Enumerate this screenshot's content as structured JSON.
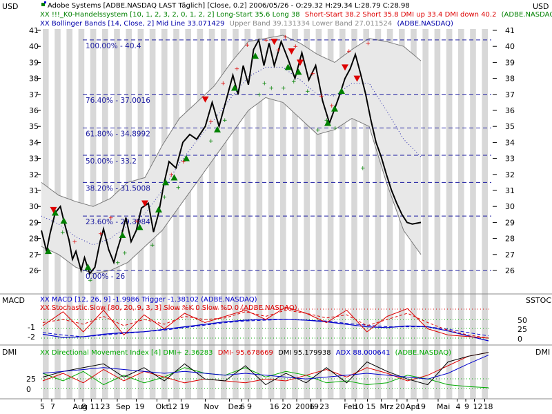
{
  "header": {
    "left_unit": "USD",
    "right_unit": "USD",
    "title_line": "Adobe Systems [ADBE.NASDAQ LAST Täglich] [Close, 0.2] 2006/05/26 - O:29.32 H:29.34 L:28.79 C:28.98",
    "system_line_green": "XX !!!_K0-Handelssystem [10, 1, 2, 3, 2, 0, 1, 2, 2] Long-Start 35.6 Long 38",
    "system_line_red": "Short-Start 38.2 Short 35.8 DMI up 33.4 DMI down 40.2",
    "system_line_tail": "(ADBE.NASDAQ)",
    "bb_line_blue": "XX Bollinger Bands [14, Close, 2] Mid Line 33.071429",
    "bb_line_grey": "Upper Band 39.131334 Lower Band 27.011524",
    "bb_line_tail": "(ADBE.NASDAQ)"
  },
  "panels": {
    "macd_label": "MACD",
    "sstoc_label": "SSTOC",
    "dmi_label_left": "DMI",
    "dmi_label_right": "DMI",
    "macd_legend": "XX MACD [12, 26, 9] -1.9986 Trigger -1.38102 (ADBE.NASDAQ)",
    "stoch_legend": "XX Stochastic Slow [80, 20, 9, 3, 3] Slow %K 0 Slow %D 0 (ADBE.NASDAQ)",
    "dmi_legend_green": "XX Directional Movement Index [4] DMI+ 2.36283",
    "dmi_legend_red": "DMI- 95.678669",
    "dmi_legend_black": "DMI 95.179938",
    "dmi_legend_blue": "ADX 88.000641",
    "dmi_legend_tail": "(ADBE.NASDAQ)"
  },
  "colors": {
    "price": "#000000",
    "band_fill": "#e8e8e8",
    "band_line": "#7a7a7a",
    "midline": "#2222aa",
    "fib": "#1a1aa0",
    "up": "#008000",
    "down": "#dd0000",
    "macd": "#0000cc",
    "stripe": "#d8d8d8"
  },
  "chart_data": [
    {
      "type": "line",
      "name": "price",
      "yticks": [
        26,
        27,
        28,
        29,
        30,
        31,
        32,
        33,
        34,
        35,
        36,
        37,
        38,
        39,
        40,
        41
      ],
      "ylim": [
        25.3,
        41.6
      ],
      "x": [
        0,
        3,
        5,
        8,
        11,
        13,
        16,
        18,
        20,
        23,
        25,
        28,
        31,
        34,
        36,
        39,
        42,
        44,
        46,
        49,
        52,
        55,
        58,
        62,
        65,
        68,
        71,
        74,
        78,
        82,
        86,
        90,
        95,
        99,
        103,
        107,
        111,
        114,
        117,
        120,
        123,
        126,
        129,
        132,
        135,
        139,
        143,
        147,
        151,
        155,
        159,
        163,
        167,
        170,
        173,
        176,
        179,
        182,
        185,
        188,
        191,
        194,
        197,
        200,
        203,
        206,
        209,
        212,
        215,
        220
      ],
      "values": [
        28.5,
        27.2,
        28.3,
        29.6,
        30.0,
        29.1,
        27.9,
        26.7,
        27.2,
        26.0,
        26.8,
        25.8,
        26.2,
        27.8,
        28.6,
        27.3,
        26.5,
        27.3,
        28.0,
        29.3,
        27.8,
        28.5,
        29.9,
        30.2,
        28.4,
        29.6,
        31.4,
        32.8,
        32.4,
        34.0,
        34.5,
        34.2,
        35.0,
        36.5,
        35.0,
        36.6,
        38.2,
        37.0,
        38.8,
        37.6,
        39.8,
        40.4,
        38.8,
        40.2,
        38.8,
        40.3,
        39.2,
        38.0,
        39.6,
        37.9,
        38.8,
        36.6,
        35.2,
        36.1,
        37.0,
        38.0,
        38.6,
        39.5,
        38.3,
        37.0,
        35.4,
        34.0,
        33.1,
        32.0,
        31.0,
        30.2,
        29.5,
        29.0,
        28.9,
        29.0
      ]
    },
    {
      "type": "area",
      "name": "bollinger",
      "x": [
        0,
        10,
        20,
        30,
        40,
        50,
        60,
        70,
        80,
        90,
        100,
        110,
        120,
        130,
        140,
        150,
        160,
        170,
        180,
        190,
        200,
        210,
        220
      ],
      "upper": [
        31.5,
        30.7,
        30.3,
        30.0,
        30.5,
        31.5,
        31.8,
        33.8,
        35.5,
        36.5,
        37.5,
        39.0,
        40.3,
        40.5,
        40.7,
        40.2,
        39.5,
        39.0,
        39.8,
        40.5,
        40.3,
        40.0,
        39.1
      ],
      "lower": [
        27.5,
        27.0,
        26.2,
        25.8,
        26.0,
        26.5,
        27.5,
        28.5,
        30.0,
        31.5,
        33.0,
        34.5,
        36.0,
        36.8,
        36.5,
        35.5,
        34.5,
        34.8,
        35.5,
        35.0,
        31.5,
        28.5,
        27.0
      ],
      "mid": [
        29.4,
        28.9,
        28.1,
        27.6,
        28.0,
        28.8,
        29.5,
        31.0,
        32.7,
        34.1,
        35.4,
        36.8,
        38.1,
        38.7,
        38.7,
        37.9,
        37.0,
        36.9,
        37.7,
        37.7,
        36.0,
        34.2,
        33.1
      ]
    },
    {
      "type": "table",
      "name": "fibonacci",
      "levels": [
        {
          "value": 40.4,
          "label": "100.00% - 40.4"
        },
        {
          "value": 37.0016,
          "label": "76.40% - 37.0016"
        },
        {
          "value": 34.8992,
          "label": "61.80% - 34.8992"
        },
        {
          "value": 33.2,
          "label": "50.00% - 33.2"
        },
        {
          "value": 31.5008,
          "label": "38.20% - 31.5008"
        },
        {
          "value": 29.3984,
          "label": "23.60% - 29.3984"
        },
        {
          "value": 26,
          "label": "0.00% - 26"
        }
      ]
    },
    {
      "type": "scatter",
      "name": "signals",
      "up": [
        [
          4,
          27.2
        ],
        [
          8,
          29.6
        ],
        [
          13,
          29.1
        ],
        [
          27,
          26.2
        ],
        [
          47,
          28.2
        ],
        [
          57,
          28.7
        ],
        [
          68,
          29.8
        ],
        [
          72,
          31.5
        ],
        [
          77,
          31.8
        ],
        [
          84,
          33.0
        ],
        [
          102,
          34.8
        ],
        [
          112,
          37.4
        ],
        [
          124,
          39.4
        ],
        [
          143,
          38.7
        ],
        [
          149,
          38.4
        ],
        [
          166,
          35.2
        ],
        [
          170,
          36.1
        ],
        [
          174,
          37.2
        ]
      ],
      "down": [
        [
          7,
          29.8
        ],
        [
          60,
          30.2
        ],
        [
          95,
          36.7
        ],
        [
          135,
          40.3
        ],
        [
          145,
          39.7
        ],
        [
          150,
          39.0
        ],
        [
          176,
          38.7
        ],
        [
          183,
          38.0
        ]
      ],
      "plus_green": [
        [
          12,
          28.4
        ],
        [
          28,
          25.4
        ],
        [
          44,
          26.5
        ],
        [
          48,
          27.1
        ],
        [
          64,
          27.6
        ],
        [
          71,
          30.6
        ],
        [
          79,
          31.2
        ],
        [
          98,
          34.1
        ],
        [
          106,
          35.4
        ],
        [
          126,
          37.0
        ],
        [
          129,
          37.7
        ],
        [
          133,
          37.4
        ],
        [
          140,
          37.4
        ],
        [
          146,
          37.8
        ],
        [
          154,
          37.2
        ],
        [
          160,
          34.8
        ],
        [
          165,
          35.4
        ],
        [
          170,
          34.9
        ],
        [
          186,
          32.4
        ]
      ],
      "plus_red": [
        [
          19,
          27.8
        ],
        [
          34,
          28.3
        ],
        [
          40,
          29.3
        ],
        [
          55,
          29.1
        ],
        [
          75,
          32.0
        ],
        [
          82,
          32.8
        ],
        [
          98,
          35.3
        ],
        [
          105,
          37.7
        ],
        [
          113,
          38.6
        ],
        [
          119,
          40.1
        ],
        [
          130,
          40.4
        ],
        [
          137,
          39.8
        ],
        [
          141,
          40.6
        ],
        [
          147,
          40.0
        ],
        [
          157,
          38.3
        ],
        [
          162,
          36.9
        ],
        [
          168,
          36.3
        ],
        [
          178,
          39.7
        ],
        [
          189,
          40.2
        ]
      ]
    },
    {
      "type": "line",
      "name": "macd_stochastic",
      "yticks_left": [
        "-1",
        "-2"
      ],
      "yticks_right": [
        "50",
        "25",
        "0"
      ],
      "macd": [
        -1.2,
        -1.6,
        -1.5,
        -1.2,
        -1.0,
        -0.9,
        -0.6,
        -0.3,
        0.0,
        0.3,
        0.5,
        0.6,
        0.6,
        0.5,
        0.3,
        0.0,
        -0.3,
        -0.4,
        -0.2,
        -0.3,
        -0.8,
        -1.4,
        -2.0
      ],
      "trigger": [
        -1.0,
        -1.3,
        -1.5,
        -1.3,
        -1.1,
        -0.9,
        -0.7,
        -0.4,
        -0.1,
        0.2,
        0.4,
        0.5,
        0.6,
        0.5,
        0.4,
        0.1,
        -0.1,
        -0.3,
        -0.3,
        -0.3,
        -0.6,
        -1.0,
        -1.4
      ],
      "stoch_k": [
        40,
        85,
        20,
        90,
        10,
        75,
        30,
        80,
        50,
        70,
        90,
        60,
        100,
        80,
        50,
        90,
        20,
        70,
        95,
        30,
        10,
        5,
        0
      ],
      "stoch_d": [
        50,
        60,
        45,
        70,
        40,
        60,
        45,
        70,
        60,
        65,
        85,
        70,
        90,
        80,
        65,
        75,
        40,
        60,
        80,
        50,
        25,
        10,
        0
      ]
    },
    {
      "type": "line",
      "name": "dmi",
      "yticks": [
        "25",
        "0"
      ],
      "dmi_plus": [
        40,
        20,
        45,
        10,
        35,
        15,
        30,
        55,
        40,
        35,
        55,
        30,
        45,
        35,
        15,
        20,
        10,
        15,
        35,
        25,
        10,
        5,
        2
      ],
      "dmi_minus": [
        20,
        40,
        15,
        50,
        20,
        45,
        30,
        15,
        25,
        20,
        15,
        25,
        20,
        35,
        50,
        30,
        55,
        40,
        20,
        35,
        60,
        85,
        95
      ],
      "dmi": [
        30,
        45,
        55,
        65,
        30,
        55,
        20,
        65,
        25,
        20,
        60,
        10,
        40,
        15,
        55,
        15,
        70,
        45,
        25,
        10,
        70,
        85,
        95
      ],
      "adx": [
        40,
        45,
        50,
        55,
        50,
        45,
        40,
        45,
        40,
        35,
        40,
        35,
        30,
        25,
        30,
        35,
        40,
        35,
        30,
        25,
        40,
        65,
        88
      ]
    }
  ],
  "xaxis": {
    "labels": [
      {
        "x": 0,
        "text": "5"
      },
      {
        "x": 6,
        "text": "7"
      },
      {
        "x": 19,
        "text": "Aug"
      },
      {
        "x": 24,
        "text": "8"
      },
      {
        "x": 29,
        "text": "11"
      },
      {
        "x": 35,
        "text": "23"
      },
      {
        "x": 44,
        "text": "Sep"
      },
      {
        "x": 55,
        "text": "19"
      },
      {
        "x": 67,
        "text": "Okt"
      },
      {
        "x": 74,
        "text": "12"
      },
      {
        "x": 81,
        "text": "19"
      },
      {
        "x": 95,
        "text": "Nov"
      },
      {
        "x": 109,
        "text": "Dez"
      },
      {
        "x": 116,
        "text": "6"
      },
      {
        "x": 120,
        "text": "9"
      },
      {
        "x": 133,
        "text": "16"
      },
      {
        "x": 140,
        "text": "20"
      },
      {
        "x": 148,
        "text": "2006"
      },
      {
        "x": 156,
        "text": "19"
      },
      {
        "x": 162,
        "text": "23"
      },
      {
        "x": 176,
        "text": "Feb"
      },
      {
        "x": 182,
        "text": "10"
      },
      {
        "x": 189,
        "text": "15"
      },
      {
        "x": 197,
        "text": "Mrz"
      },
      {
        "x": 206,
        "text": "20"
      },
      {
        "x": 212,
        "text": "Apr"
      },
      {
        "x": 218,
        "text": "19"
      },
      {
        "x": 230,
        "text": "Mai"
      },
      {
        "x": 241,
        "text": "4"
      },
      {
        "x": 246,
        "text": "9"
      },
      {
        "x": 251,
        "text": "12"
      },
      {
        "x": 257,
        "text": "18"
      }
    ]
  }
}
